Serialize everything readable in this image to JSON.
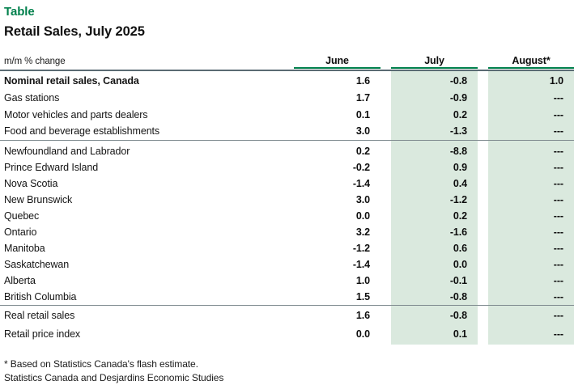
{
  "chart_data": {
    "type": "table",
    "kicker": "Table",
    "title": "Retail Sales, July 2025",
    "unit_label": "m/m % change",
    "columns": [
      "June",
      "July",
      "August*"
    ],
    "sections": [
      {
        "rows": [
          {
            "label": "Nominal retail sales, Canada",
            "values": [
              "1.6",
              "-0.8",
              "1.0"
            ],
            "bold": true
          },
          {
            "label": "Gas stations",
            "values": [
              "1.7",
              "-0.9",
              "---"
            ],
            "bold": false
          },
          {
            "label": "Motor vehicles and parts dealers",
            "values": [
              "0.1",
              "0.2",
              "---"
            ],
            "bold": false
          },
          {
            "label": "Food and beverage establishments",
            "values": [
              "3.0",
              "-1.3",
              "---"
            ],
            "bold": false
          }
        ]
      },
      {
        "rows": [
          {
            "label": "Newfoundland and Labrador",
            "values": [
              "0.2",
              "-8.8",
              "---"
            ],
            "bold": false
          },
          {
            "label": "Prince Edward Island",
            "values": [
              "-0.2",
              "0.9",
              "---"
            ],
            "bold": false
          },
          {
            "label": "Nova Scotia",
            "values": [
              "-1.4",
              "0.4",
              "---"
            ],
            "bold": false
          },
          {
            "label": "New Brunswick",
            "values": [
              "3.0",
              "-1.2",
              "---"
            ],
            "bold": false
          },
          {
            "label": "Quebec",
            "values": [
              "0.0",
              "0.2",
              "---"
            ],
            "bold": false
          },
          {
            "label": "Ontario",
            "values": [
              "3.2",
              "-1.6",
              "---"
            ],
            "bold": false
          },
          {
            "label": "Manitoba",
            "values": [
              "-1.2",
              "0.6",
              "---"
            ],
            "bold": false
          },
          {
            "label": "Saskatchewan",
            "values": [
              "-1.4",
              "0.0",
              "---"
            ],
            "bold": false
          },
          {
            "label": "Alberta",
            "values": [
              "1.0",
              "-0.1",
              "---"
            ],
            "bold": false
          },
          {
            "label": "British Columbia",
            "values": [
              "1.5",
              "-0.8",
              "---"
            ],
            "bold": false
          }
        ]
      },
      {
        "rows": [
          {
            "label": "Real retail sales",
            "values": [
              "1.6",
              "-0.8",
              "---"
            ],
            "bold": false
          },
          {
            "label": "Retail price index",
            "values": [
              "0.0",
              "0.1",
              "---"
            ],
            "bold": false
          }
        ]
      }
    ],
    "footnotes": [
      "* Based on Statistics Canada's flash estimate.",
      "Statistics Canada and Desjardins Economic Studies"
    ]
  },
  "colors": {
    "accent_green": "#00804c",
    "column_shade_green": "#dae9de",
    "header_rule": "#5a6b73",
    "section_separator": "#7e8a8e"
  }
}
